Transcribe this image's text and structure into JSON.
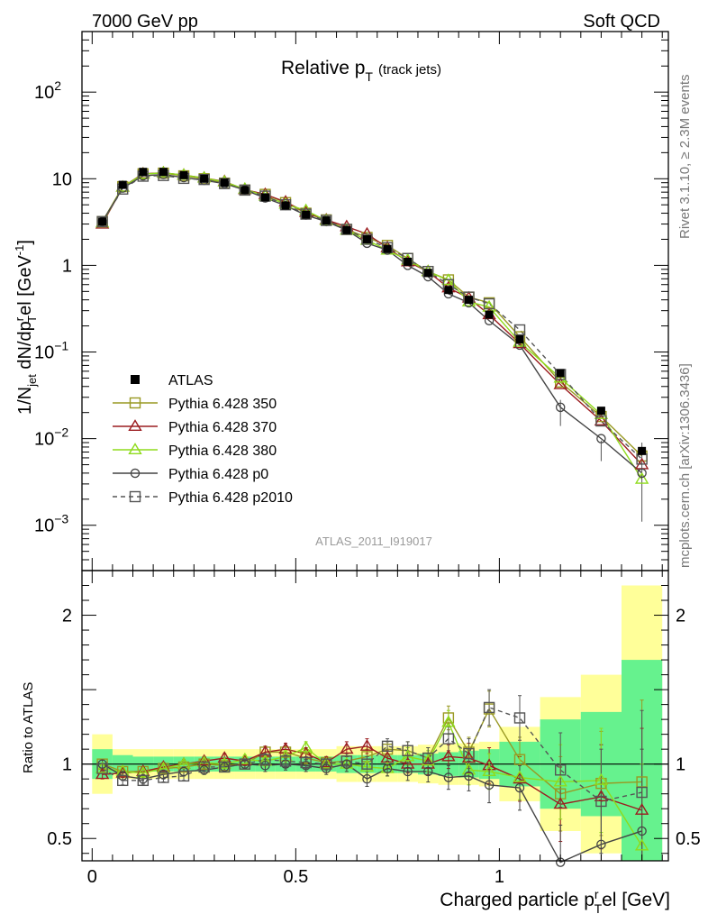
{
  "header": {
    "left": "7000 GeV pp",
    "right": "Soft QCD"
  },
  "side_text": {
    "rivet": "Rivet 3.1.10, ≥ 2.3M events",
    "mcplots": "mcplots.cern.ch [arXiv:1306.3436]"
  },
  "chart_data": [
    {
      "type": "scatter",
      "title": "Relative p",
      "title_sub": "T",
      "title_suffix": "(track jets)",
      "watermark": "ATLAS_2011_I919017",
      "ylabel": "1/N_jet dN/dp_T^rel [GeV^-1]",
      "y_scale": "log",
      "ylim": [
        0.0003,
        500
      ],
      "xlim": [
        -0.025,
        1.415
      ],
      "y_ticks": [
        {
          "value": 0.001,
          "label": "10",
          "sup": "−3"
        },
        {
          "value": 0.01,
          "label": "10",
          "sup": "−2"
        },
        {
          "value": 0.1,
          "label": "10",
          "sup": "−1"
        },
        {
          "value": 1,
          "label": "1",
          "sup": ""
        },
        {
          "value": 10,
          "label": "10",
          "sup": ""
        },
        {
          "value": 100,
          "label": "10",
          "sup": "2"
        }
      ],
      "legend_position": "bottom-left",
      "x": [
        0.025,
        0.075,
        0.125,
        0.175,
        0.225,
        0.275,
        0.325,
        0.375,
        0.425,
        0.475,
        0.525,
        0.575,
        0.625,
        0.675,
        0.725,
        0.775,
        0.825,
        0.875,
        0.925,
        0.975,
        1.05,
        1.15,
        1.25,
        1.35
      ],
      "series": [
        {
          "name": "ATLAS",
          "color": "#000000",
          "marker": "filled-square",
          "line": "none",
          "values": [
            3.2,
            8.5,
            12.0,
            12.0,
            11.0,
            10.0,
            9.0,
            7.4,
            6.1,
            4.9,
            3.85,
            3.3,
            2.55,
            2.0,
            1.55,
            1.1,
            0.82,
            0.52,
            0.4,
            0.27,
            0.14,
            0.057,
            0.021,
            0.0072
          ]
        },
        {
          "name": "Pythia 6.428 350",
          "color": "#999922",
          "marker": "open-square",
          "line": "solid",
          "values": [
            3.2,
            8.1,
            11.4,
            11.6,
            10.8,
            10.0,
            8.9,
            7.4,
            6.6,
            5.3,
            4.0,
            3.35,
            2.6,
            2.1,
            1.7,
            1.2,
            0.85,
            0.68,
            0.43,
            0.37,
            0.15,
            0.045,
            0.018,
            0.0063
          ]
        },
        {
          "name": "Pythia 6.428 370",
          "color": "#9b1d20",
          "marker": "open-triangle",
          "line": "solid",
          "values": [
            3.0,
            8.0,
            11.4,
            11.7,
            11.0,
            10.2,
            9.3,
            7.5,
            6.6,
            5.4,
            4.1,
            3.35,
            2.8,
            2.3,
            1.6,
            1.1,
            0.85,
            0.55,
            0.42,
            0.27,
            0.125,
            0.042,
            0.016,
            0.005
          ]
        },
        {
          "name": "Pythia 6.428 380",
          "color": "#8fdb1c",
          "marker": "open-triangle",
          "line": "solid",
          "values": [
            3.1,
            8.0,
            11.3,
            11.7,
            11.0,
            10.2,
            9.2,
            7.6,
            6.3,
            5.1,
            4.3,
            3.3,
            2.55,
            1.95,
            1.5,
            1.15,
            0.85,
            0.67,
            0.38,
            0.33,
            0.13,
            0.05,
            0.019,
            0.0034
          ]
        },
        {
          "name": "Pythia 6.428 p0",
          "color": "#444444",
          "marker": "open-circle",
          "line": "solid",
          "values": [
            3.2,
            7.8,
            10.8,
            11.2,
            10.3,
            9.6,
            8.8,
            7.4,
            6.0,
            4.9,
            3.8,
            3.2,
            2.55,
            1.8,
            1.5,
            1.0,
            0.74,
            0.47,
            0.37,
            0.23,
            0.12,
            0.023,
            0.01,
            0.004
          ]
        },
        {
          "name": "Pythia 6.428 p2010",
          "color": "#555555",
          "marker": "open-square",
          "line": "dashed",
          "values": [
            3.2,
            7.6,
            10.7,
            10.9,
            10.1,
            9.8,
            8.8,
            7.4,
            6.3,
            5.0,
            3.9,
            3.3,
            2.6,
            2.0,
            1.6,
            1.2,
            0.85,
            0.6,
            0.43,
            0.36,
            0.18,
            0.055,
            0.016,
            0.0058
          ]
        }
      ]
    },
    {
      "type": "scatter",
      "title": "",
      "ylabel": "Ratio to ATLAS",
      "xlabel": "Charged particle p_T^rel [GeV]",
      "ylim": [
        0.35,
        2.3
      ],
      "xlim": [
        -0.025,
        1.415
      ],
      "x_ticks": [
        0,
        0.5,
        1
      ],
      "x_tick_labels": [
        "0",
        "0.5",
        "1"
      ],
      "y_ticks": [
        0.5,
        1,
        2
      ],
      "y_tick_labels": [
        "0.5",
        "1",
        "2"
      ],
      "error_bands": {
        "bins": [
          [
            0.0,
            0.05
          ],
          [
            0.05,
            0.1
          ],
          [
            0.1,
            0.15
          ],
          [
            0.15,
            0.2
          ],
          [
            0.2,
            0.25
          ],
          [
            0.25,
            0.3
          ],
          [
            0.3,
            0.35
          ],
          [
            0.35,
            0.4
          ],
          [
            0.4,
            0.45
          ],
          [
            0.45,
            0.5
          ],
          [
            0.5,
            0.55
          ],
          [
            0.55,
            0.6
          ],
          [
            0.6,
            0.65
          ],
          [
            0.65,
            0.7
          ],
          [
            0.7,
            0.75
          ],
          [
            0.75,
            0.8
          ],
          [
            0.8,
            0.85
          ],
          [
            0.85,
            0.9
          ],
          [
            0.9,
            0.95
          ],
          [
            0.95,
            1.0
          ],
          [
            1.0,
            1.1
          ],
          [
            1.1,
            1.2
          ],
          [
            1.2,
            1.3
          ],
          [
            1.3,
            1.4
          ]
        ],
        "inner": [
          0.1,
          0.06,
          0.05,
          0.05,
          0.05,
          0.05,
          0.05,
          0.05,
          0.05,
          0.05,
          0.05,
          0.05,
          0.06,
          0.06,
          0.06,
          0.06,
          0.07,
          0.08,
          0.09,
          0.1,
          0.15,
          0.3,
          0.35,
          0.7
        ],
        "outer": [
          0.2,
          0.1,
          0.1,
          0.1,
          0.1,
          0.1,
          0.1,
          0.1,
          0.1,
          0.1,
          0.1,
          0.1,
          0.12,
          0.12,
          0.12,
          0.12,
          0.13,
          0.14,
          0.14,
          0.15,
          0.25,
          0.45,
          0.6,
          1.2
        ],
        "inner_color": "#66f28e",
        "outer_color": "#ffff99"
      },
      "series": [
        {
          "name": "Pythia 6.428 350",
          "color": "#999922",
          "marker": "open-square",
          "line": "solid",
          "values": [
            1.0,
            0.95,
            0.95,
            0.97,
            0.98,
            1.0,
            0.99,
            1.0,
            1.08,
            1.08,
            1.04,
            1.01,
            1.02,
            1.05,
            1.1,
            1.09,
            1.04,
            1.31,
            1.08,
            1.37,
            1.03,
            0.8,
            0.87,
            0.88
          ],
          "errors": [
            0.03,
            0.03,
            0.03,
            0.03,
            0.03,
            0.03,
            0.03,
            0.03,
            0.04,
            0.04,
            0.04,
            0.04,
            0.05,
            0.05,
            0.05,
            0.06,
            0.07,
            0.08,
            0.1,
            0.12,
            0.15,
            0.25,
            0.35,
            0.55
          ]
        },
        {
          "name": "Pythia 6.428 370",
          "color": "#9b1d20",
          "marker": "open-triangle",
          "line": "solid",
          "values": [
            0.93,
            0.94,
            0.95,
            0.98,
            1.0,
            1.02,
            1.04,
            1.02,
            1.08,
            1.1,
            1.07,
            1.01,
            1.1,
            1.12,
            1.04,
            1.0,
            1.0,
            1.05,
            1.04,
            0.99,
            0.9,
            0.73,
            0.78,
            0.69
          ],
          "errors": [
            0.03,
            0.03,
            0.03,
            0.03,
            0.03,
            0.03,
            0.03,
            0.03,
            0.04,
            0.04,
            0.04,
            0.04,
            0.05,
            0.05,
            0.05,
            0.06,
            0.07,
            0.08,
            0.1,
            0.12,
            0.15,
            0.25,
            0.35,
            0.55
          ]
        },
        {
          "name": "Pythia 6.428 380",
          "color": "#8fdb1c",
          "marker": "open-triangle",
          "line": "solid",
          "values": [
            0.97,
            0.95,
            0.94,
            0.97,
            1.0,
            1.01,
            1.0,
            1.03,
            1.02,
            1.05,
            1.11,
            1.0,
            1.0,
            0.98,
            0.97,
            1.05,
            1.02,
            1.28,
            0.96,
            0.95,
            0.91,
            0.88,
            0.89,
            0.45
          ],
          "errors": [
            0.03,
            0.03,
            0.03,
            0.03,
            0.03,
            0.03,
            0.03,
            0.03,
            0.04,
            0.04,
            0.04,
            0.04,
            0.05,
            0.05,
            0.05,
            0.06,
            0.07,
            0.08,
            0.1,
            0.12,
            0.15,
            0.25,
            0.35,
            0.55
          ]
        },
        {
          "name": "Pythia 6.428 p0",
          "color": "#444444",
          "marker": "open-circle",
          "line": "solid",
          "values": [
            1.0,
            0.92,
            0.9,
            0.93,
            0.95,
            0.96,
            0.98,
            1.0,
            0.99,
            1.0,
            0.99,
            0.97,
            1.0,
            0.9,
            0.97,
            0.95,
            0.95,
            0.91,
            0.92,
            0.86,
            0.84,
            0.34,
            0.46,
            0.55
          ],
          "errors": [
            0.03,
            0.03,
            0.03,
            0.03,
            0.03,
            0.03,
            0.03,
            0.03,
            0.04,
            0.04,
            0.04,
            0.04,
            0.05,
            0.05,
            0.05,
            0.06,
            0.07,
            0.08,
            0.1,
            0.12,
            0.15,
            0.25,
            0.35,
            0.55
          ]
        },
        {
          "name": "Pythia 6.428 p2010",
          "color": "#555555",
          "marker": "open-square",
          "line": "dashed",
          "values": [
            0.97,
            0.89,
            0.89,
            0.91,
            0.92,
            0.98,
            0.98,
            1.0,
            1.03,
            1.02,
            1.01,
            1.0,
            1.02,
            1.0,
            1.12,
            1.09,
            1.04,
            1.17,
            1.07,
            1.38,
            1.31,
            0.96,
            0.75,
            0.81
          ],
          "errors": [
            0.03,
            0.03,
            0.03,
            0.03,
            0.03,
            0.03,
            0.03,
            0.03,
            0.04,
            0.04,
            0.04,
            0.04,
            0.05,
            0.05,
            0.05,
            0.06,
            0.07,
            0.08,
            0.1,
            0.12,
            0.15,
            0.25,
            0.35,
            0.55
          ]
        }
      ]
    }
  ]
}
